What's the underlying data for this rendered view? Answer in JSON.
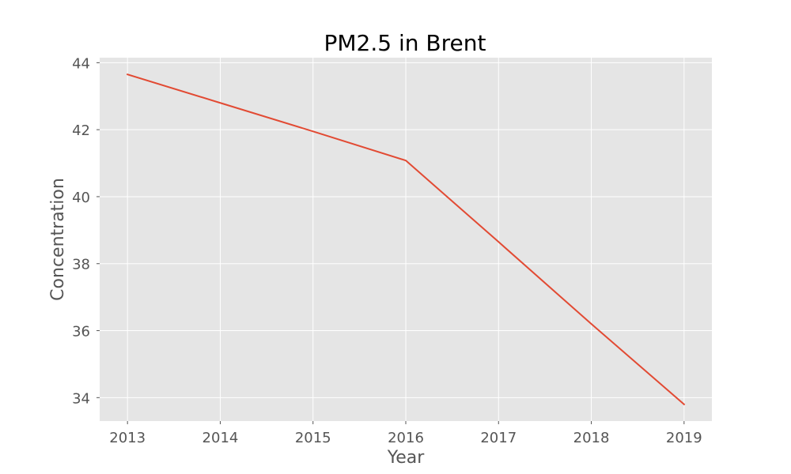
{
  "chart_data": {
    "type": "line",
    "title": "PM2.5 in Brent",
    "xlabel": "Year",
    "ylabel": "Concentration",
    "x": [
      2013,
      2014,
      2015,
      2016,
      2017,
      2018,
      2019
    ],
    "series": [
      {
        "values": [
          43.65,
          42.8,
          41.95,
          41.08,
          38.65,
          36.2,
          33.8
        ]
      }
    ],
    "xticks": [
      "2013",
      "2014",
      "2015",
      "2016",
      "2017",
      "2018",
      "2019"
    ],
    "yticks": [
      "34",
      "36",
      "38",
      "40",
      "42",
      "44"
    ],
    "xlim": [
      2012.7,
      2019.3
    ],
    "ylim": [
      33.3,
      44.15
    ],
    "grid": true,
    "colors": {
      "background": "#e5e5e5",
      "grid": "#ffffff",
      "line": "#e24a33",
      "tick": "#555555"
    }
  }
}
